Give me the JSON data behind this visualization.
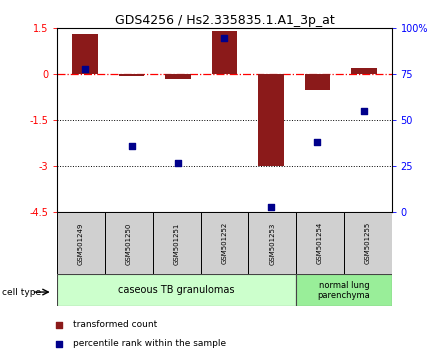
{
  "title": "GDS4256 / Hs2.335835.1.A1_3p_at",
  "samples": [
    "GSM501249",
    "GSM501250",
    "GSM501251",
    "GSM501252",
    "GSM501253",
    "GSM501254",
    "GSM501255"
  ],
  "red_values": [
    1.3,
    -0.05,
    -0.15,
    1.4,
    -3.0,
    -0.5,
    0.2
  ],
  "blue_values_pct": [
    78,
    36,
    27,
    95,
    3,
    38,
    55
  ],
  "ylim_left": [
    -4.5,
    1.5
  ],
  "ylim_right": [
    0,
    100
  ],
  "dotted_lines": [
    -1.5,
    -3.0
  ],
  "bar_color": "#8B1A1A",
  "dot_color": "#00008B",
  "caseous_label": "caseous TB granulomas",
  "normal_label": "normal lung\nparenchyma",
  "caseous_color": "#ccffcc",
  "normal_color": "#99ee99",
  "cell_type_label": "cell type",
  "legend_red": "transformed count",
  "legend_blue": "percentile rank within the sample",
  "bar_width": 0.55,
  "dot_size": 18
}
